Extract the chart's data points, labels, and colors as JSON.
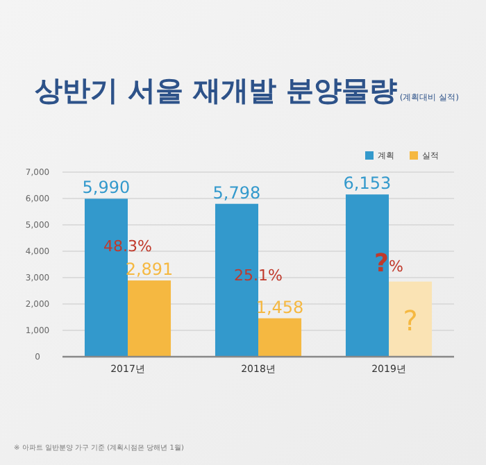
{
  "chart_data": {
    "type": "bar",
    "title": "상반기 서울 재개발 분양물량",
    "subtitle": "(계획대비 실적)",
    "categories": [
      "2017년",
      "2018년",
      "2019년"
    ],
    "series": [
      {
        "name": "계획",
        "color": "#3399cc",
        "values": [
          5990,
          5798,
          6153
        ],
        "value_labels": [
          "5,990",
          "5,798",
          "6,153"
        ]
      },
      {
        "name": "실적",
        "color": "#f5b841",
        "colors": [
          "#f5b841",
          "#f5b841",
          "#fae3b4"
        ],
        "values": [
          2891,
          1458,
          2850
        ],
        "value_labels": [
          "2,891",
          "1,458",
          "?"
        ]
      }
    ],
    "ylim": [
      0,
      7000
    ],
    "yticks": [
      0,
      {
        "value": 1000,
        "label": "1,000"
      },
      {
        "value": 2000,
        "label": "2,000"
      },
      {
        "value": 3000,
        "label": "3,000"
      },
      {
        "value": 4000,
        "label": "4,000"
      },
      {
        "value": 5000,
        "label": "5,000"
      },
      {
        "value": 6000,
        "label": "6,000"
      },
      {
        "value": 7000,
        "label": "7,000"
      }
    ],
    "grid": "y",
    "legend": "top right",
    "annotations": [
      {
        "text": "48.3%",
        "x": "2017년",
        "y": 4000
      },
      {
        "text": "25.1%",
        "x": "2018년",
        "y": 2900
      },
      {
        "text": "?%",
        "x": "2019년",
        "y": 3250
      },
      "※ 아파트 일반분양 가구 기준 (계획시점은 당해년 1월)"
    ]
  }
}
